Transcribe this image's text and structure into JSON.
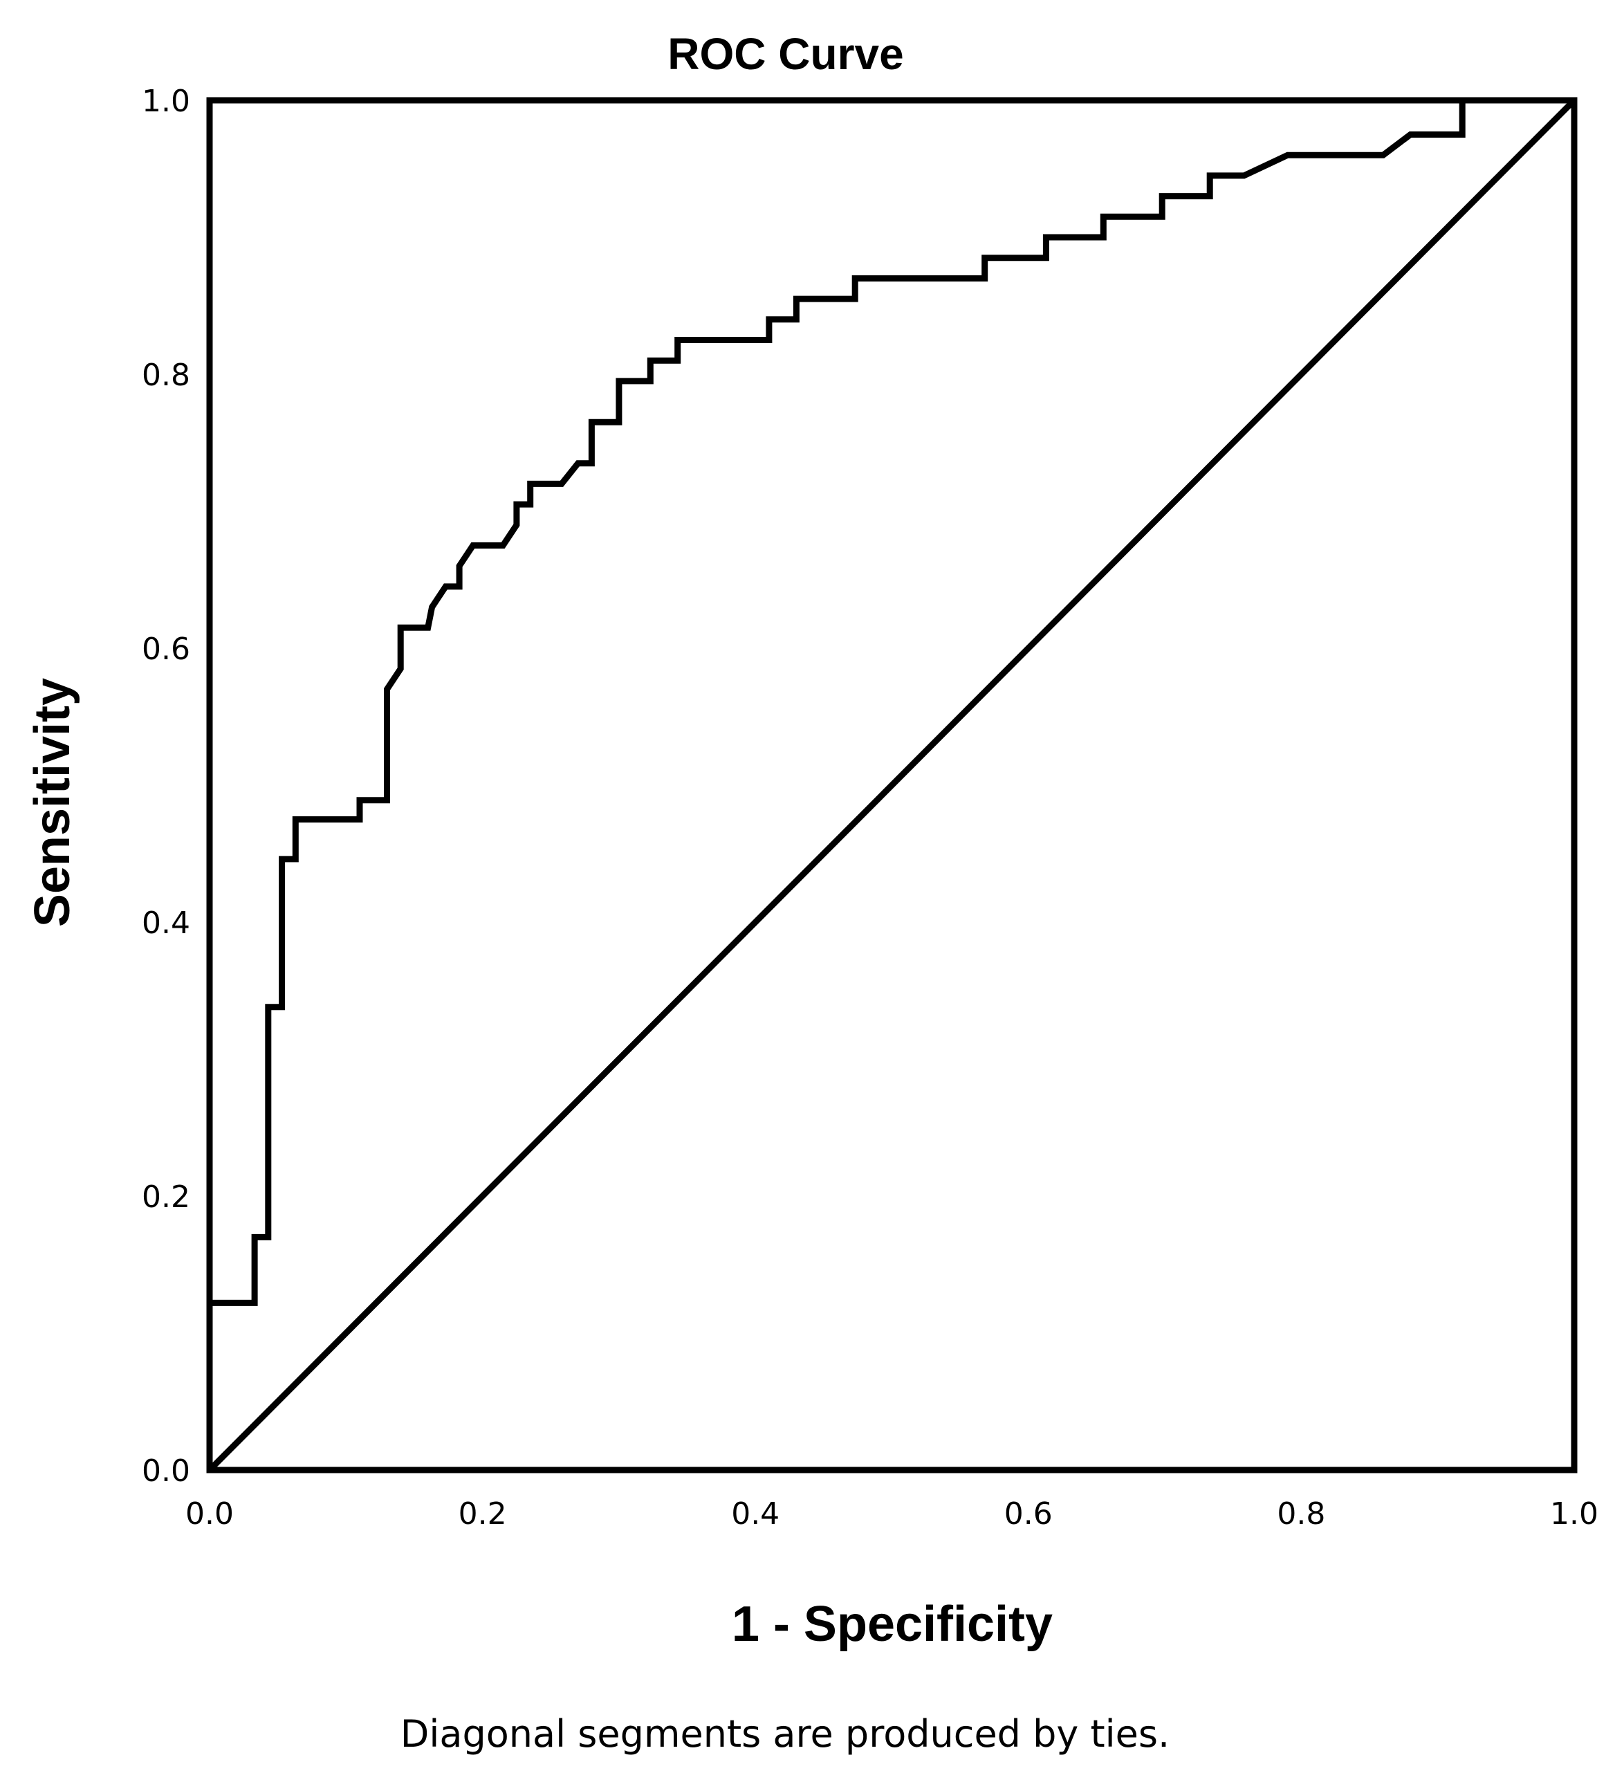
{
  "chart_data": {
    "type": "line",
    "title": "ROC Curve",
    "xlabel": "1 - Specificity",
    "ylabel": "Sensitivity",
    "xlim": [
      0,
      1
    ],
    "ylim": [
      0,
      1
    ],
    "x_ticks": [
      "0.0",
      "0.2",
      "0.4",
      "0.6",
      "0.8",
      "1.0"
    ],
    "y_ticks": [
      "0.0",
      "0.2",
      "0.4",
      "0.6",
      "0.8",
      "1.0"
    ],
    "grid": false,
    "footnote": "Diagonal segments are produced by ties.",
    "series": [
      {
        "points": [
          [
            0,
            0
          ],
          [
            0,
            0.122
          ],
          [
            0.033,
            0.122
          ],
          [
            0.033,
            0.17
          ],
          [
            0.043,
            0.17
          ],
          [
            0.043,
            0.338
          ],
          [
            0.053,
            0.338
          ],
          [
            0.053,
            0.446
          ],
          [
            0.063,
            0.446
          ],
          [
            0.063,
            0.475
          ],
          [
            0.11,
            0.475
          ],
          [
            0.11,
            0.489
          ],
          [
            0.13,
            0.489
          ],
          [
            0.13,
            0.57
          ],
          [
            0.14,
            0.585
          ],
          [
            0.14,
            0.615
          ],
          [
            0.16,
            0.615
          ],
          [
            0.163,
            0.63
          ],
          [
            0.173,
            0.645
          ],
          [
            0.183,
            0.645
          ],
          [
            0.183,
            0.66
          ],
          [
            0.193,
            0.675
          ],
          [
            0.215,
            0.675
          ],
          [
            0.225,
            0.69
          ],
          [
            0.225,
            0.705
          ],
          [
            0.235,
            0.705
          ],
          [
            0.235,
            0.72
          ],
          [
            0.258,
            0.72
          ],
          [
            0.27,
            0.735
          ],
          [
            0.28,
            0.735
          ],
          [
            0.28,
            0.765
          ],
          [
            0.3,
            0.765
          ],
          [
            0.3,
            0.795
          ],
          [
            0.323,
            0.795
          ],
          [
            0.323,
            0.81
          ],
          [
            0.343,
            0.81
          ],
          [
            0.343,
            0.825
          ],
          [
            0.41,
            0.825
          ],
          [
            0.41,
            0.84
          ],
          [
            0.43,
            0.84
          ],
          [
            0.43,
            0.855
          ],
          [
            0.473,
            0.855
          ],
          [
            0.473,
            0.87
          ],
          [
            0.568,
            0.87
          ],
          [
            0.568,
            0.885
          ],
          [
            0.613,
            0.885
          ],
          [
            0.613,
            0.9
          ],
          [
            0.655,
            0.9
          ],
          [
            0.655,
            0.915
          ],
          [
            0.698,
            0.915
          ],
          [
            0.698,
            0.93
          ],
          [
            0.733,
            0.93
          ],
          [
            0.733,
            0.945
          ],
          [
            0.758,
            0.945
          ],
          [
            0.79,
            0.96
          ],
          [
            0.86,
            0.96
          ],
          [
            0.88,
            0.975
          ],
          [
            0.918,
            0.975
          ],
          [
            0.918,
            1.0
          ],
          [
            1.0,
            1.0
          ]
        ]
      },
      {
        "points": [
          [
            0,
            0
          ],
          [
            1,
            1
          ]
        ]
      }
    ]
  }
}
